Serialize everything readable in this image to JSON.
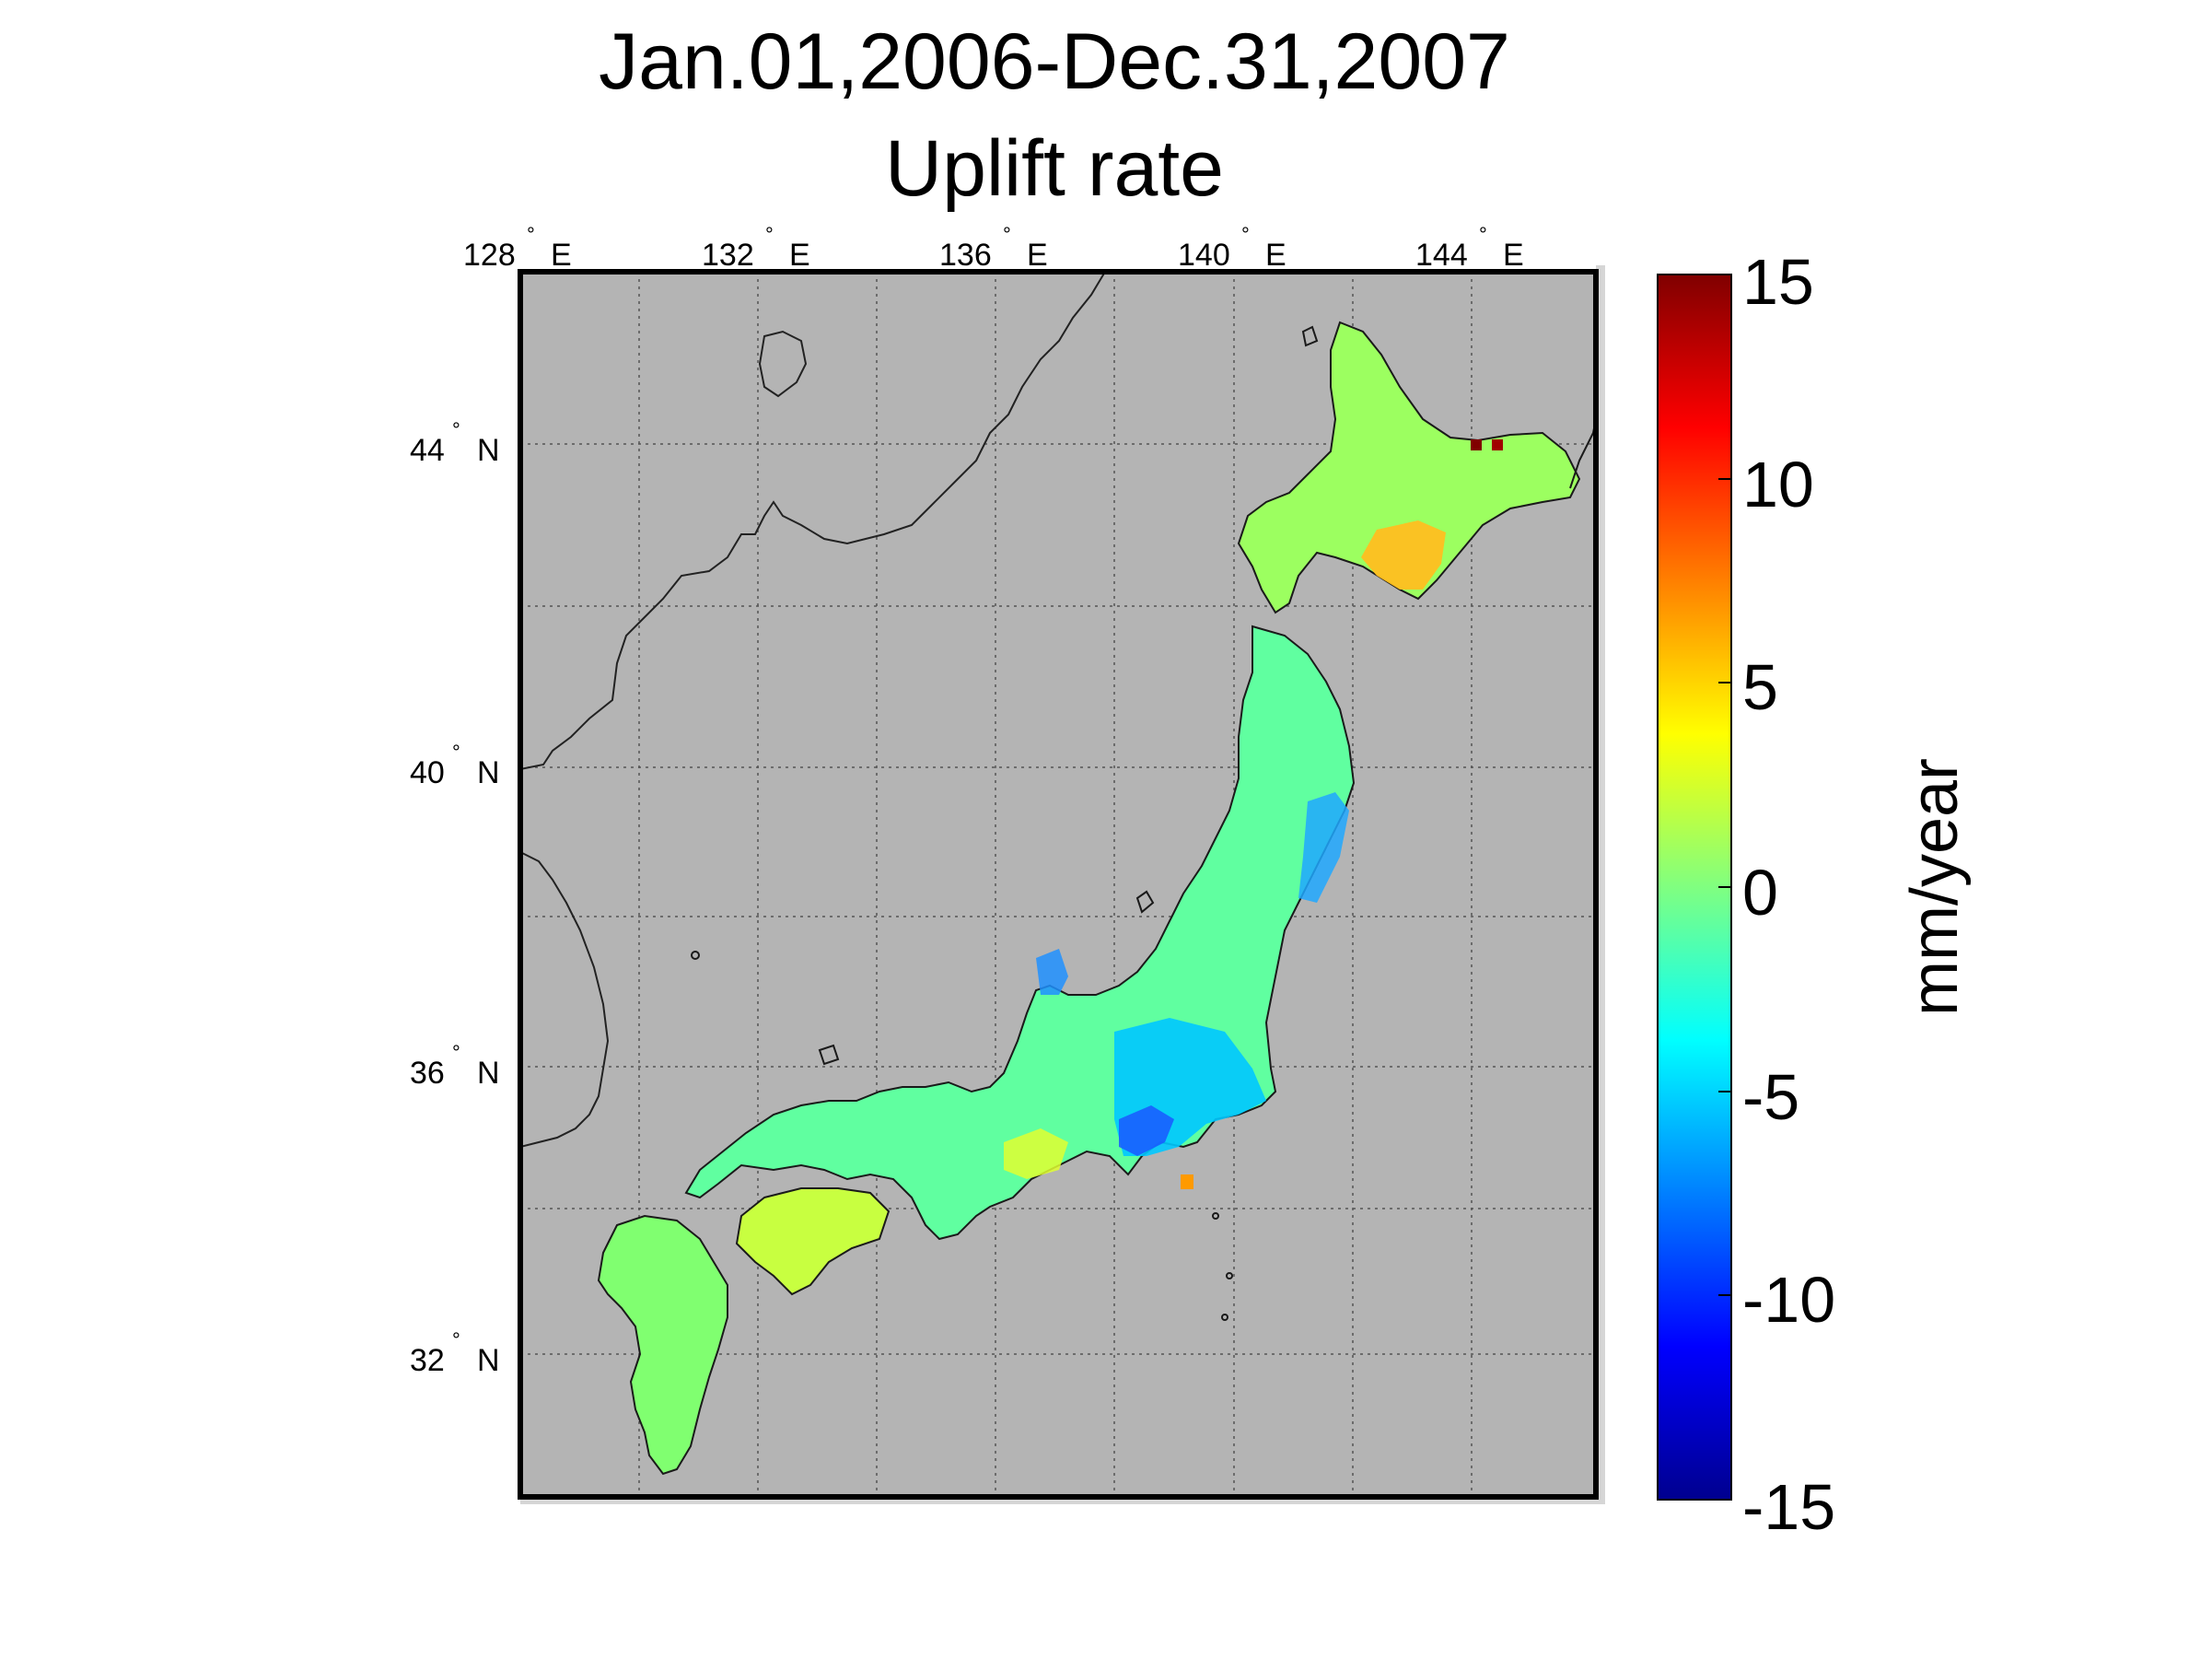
{
  "title": {
    "line1": "Jan.01,2006-Dec.31,2007",
    "line2": "Uplift rate"
  },
  "map": {
    "region": "Japan",
    "projection": "equirectangular",
    "lon_range": [
      128,
      146
    ],
    "lat_range": [
      30,
      46
    ],
    "lon_ticks": [
      {
        "value": 128,
        "label_num": "128",
        "label_dir": "E"
      },
      {
        "value": 132,
        "label_num": "132",
        "label_dir": "E"
      },
      {
        "value": 136,
        "label_num": "136",
        "label_dir": "E"
      },
      {
        "value": 140,
        "label_num": "140",
        "label_dir": "E"
      },
      {
        "value": 144,
        "label_num": "144",
        "label_dir": "E"
      }
    ],
    "lat_ticks": [
      {
        "value": 44,
        "label_num": "44",
        "label_dir": "N"
      },
      {
        "value": 40,
        "label_num": "40",
        "label_dir": "N"
      },
      {
        "value": 36,
        "label_num": "36",
        "label_dir": "N"
      },
      {
        "value": 32,
        "label_num": "32",
        "label_dir": "N"
      }
    ],
    "degree_symbol": "°",
    "background_color": "#b4b4b4",
    "grid": true,
    "grid_style": "dotted",
    "coastlines": true
  },
  "colorbar": {
    "label": "mm/year",
    "colormap": "jet",
    "range": [
      -15,
      15
    ],
    "ticks": [
      {
        "value": 15,
        "label": "15"
      },
      {
        "value": 10,
        "label": "10"
      },
      {
        "value": 5,
        "label": "5"
      },
      {
        "value": 0,
        "label": "0"
      },
      {
        "value": -5,
        "label": "-5"
      },
      {
        "value": -10,
        "label": "-10"
      },
      {
        "value": -15,
        "label": "-15"
      }
    ]
  }
}
